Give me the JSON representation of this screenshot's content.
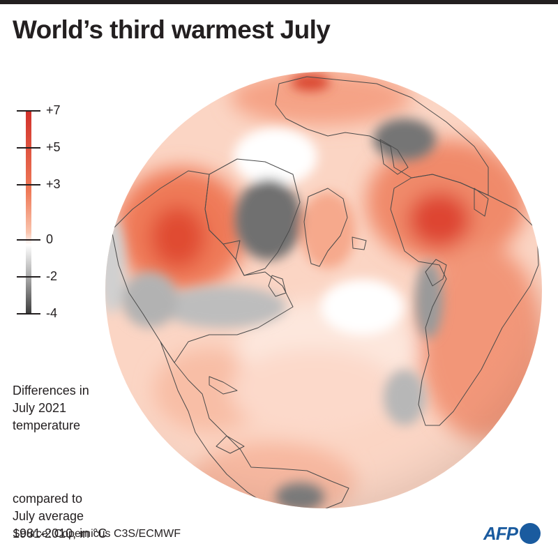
{
  "title": "World’s third warmest July",
  "legend": {
    "ticks": [
      {
        "label": "+7",
        "value": 7
      },
      {
        "label": "+5",
        "value": 5
      },
      {
        "label": "+3",
        "value": 3
      },
      {
        "label": "0",
        "value": 0
      },
      {
        "label": "-2",
        "value": -2
      },
      {
        "label": "-4",
        "value": -4
      }
    ],
    "range": [
      -4,
      7
    ],
    "colors": {
      "warm_max": "#d1302a",
      "warm_mid": "#ef7a58",
      "warm_low": "#f9c4ad",
      "neutral": "#ffffff",
      "cool_mid": "#9e9e9e",
      "cool_max": "#3b3b3b"
    }
  },
  "description": {
    "line1": "Differences in",
    "line2": "July 2021",
    "line3": "temperature",
    "line4": "compared to",
    "line5": "July average",
    "line6": "1981-2010, in °C"
  },
  "source": "Source: Copernicus C3S/ECMWF",
  "logo": {
    "text": "AFP",
    "color": "#1a5b9f"
  }
}
